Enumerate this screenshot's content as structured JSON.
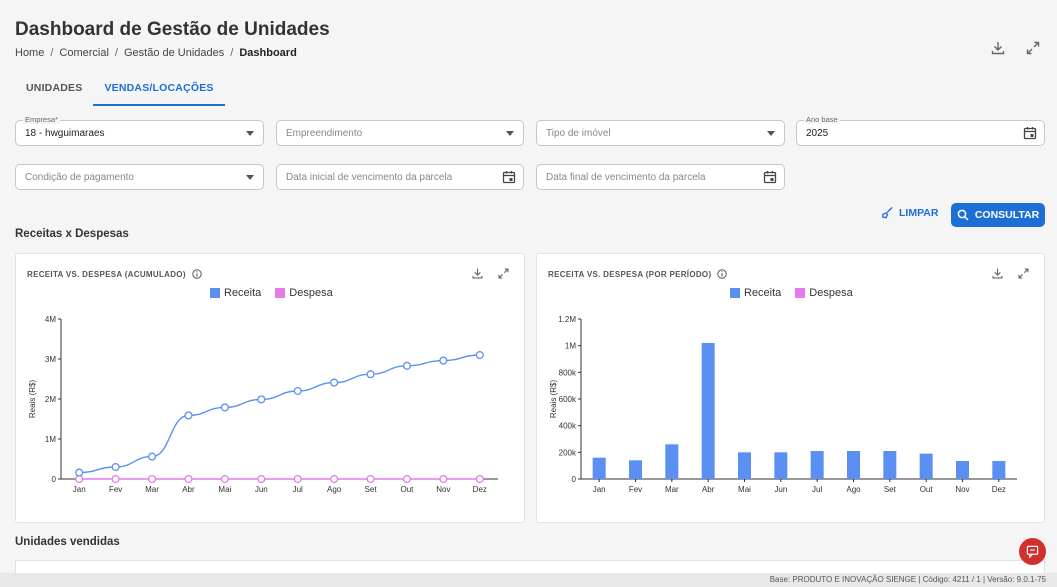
{
  "header": {
    "title": "Dashboard de Gestão de Unidades",
    "breadcrumb": [
      "Home",
      "Comercial",
      "Gestão de Unidades",
      "Dashboard"
    ]
  },
  "tabs": [
    {
      "label": "UNIDADES",
      "active": false
    },
    {
      "label": "VENDAS/LOCAÇÕES",
      "active": true
    }
  ],
  "filters": {
    "empresa": {
      "label": "Empresa*",
      "value": "18 - hwguimaraes"
    },
    "empreendimento": {
      "placeholder": "Empreendimento"
    },
    "tipo_imovel": {
      "placeholder": "Tipo de imóvel"
    },
    "ano_base": {
      "label": "Ano base",
      "value": "2025"
    },
    "condicao_pagamento": {
      "placeholder": "Condição de pagamento"
    },
    "data_inicial": {
      "placeholder": "Data inicial de vencimento da parcela"
    },
    "data_final": {
      "placeholder": "Data final de vencimento da parcela"
    }
  },
  "actions": {
    "limpar": "LIMPAR",
    "consultar": "CONSULTAR"
  },
  "sections": {
    "receitas_despesas": "Receitas x Despesas",
    "unidades_vendidas": "Unidades vendidas"
  },
  "colors": {
    "primary": "#1d6fd6",
    "receita": "#5b8ff2",
    "despesa": "#e57ae8"
  },
  "chart_data": [
    {
      "type": "line",
      "title": "RECEITA VS. DESPESA (ACUMULADO)",
      "ylabel": "Reais (R$)",
      "categories": [
        "Jan",
        "Fev",
        "Mar",
        "Abr",
        "Mai",
        "Jun",
        "Jul",
        "Ago",
        "Set",
        "Out",
        "Nov",
        "Dez"
      ],
      "yticks": [
        "0",
        "1M",
        "2M",
        "3M",
        "4M"
      ],
      "ylim": [
        0,
        4000000
      ],
      "series": [
        {
          "name": "Receita",
          "values": [
            160000,
            300000,
            560000,
            1590000,
            1790000,
            1990000,
            2200000,
            2410000,
            2620000,
            2830000,
            2960000,
            3100000
          ]
        },
        {
          "name": "Despesa",
          "values": [
            0,
            0,
            0,
            0,
            0,
            0,
            0,
            0,
            0,
            0,
            0,
            0
          ]
        }
      ]
    },
    {
      "type": "bar",
      "title": "RECEITA VS. DESPESA (POR PERÍODO)",
      "ylabel": "Reais (R$)",
      "categories": [
        "Jan",
        "Fev",
        "Mar",
        "Abr",
        "Mai",
        "Jun",
        "Jul",
        "Ago",
        "Set",
        "Out",
        "Nov",
        "Dez"
      ],
      "yticks": [
        "0",
        "200k",
        "400k",
        "600k",
        "800k",
        "1M",
        "1.2M"
      ],
      "ylim": [
        0,
        1200000
      ],
      "series": [
        {
          "name": "Receita",
          "values": [
            160000,
            140000,
            260000,
            1020000,
            200000,
            200000,
            210000,
            210000,
            210000,
            190000,
            135000,
            135000
          ]
        },
        {
          "name": "Despesa",
          "values": [
            0,
            0,
            0,
            0,
            0,
            0,
            0,
            0,
            0,
            0,
            0,
            0
          ]
        }
      ]
    }
  ],
  "footer": {
    "text": "Base: PRODUTO E INOVAÇÃO SIENGE | Código: 4211 / 1 | Versão: 9.0.1-75"
  }
}
